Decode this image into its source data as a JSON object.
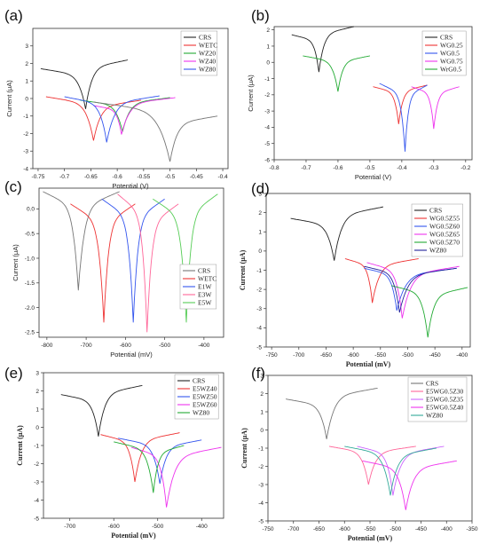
{
  "colors": {
    "black": "#222222",
    "red": "#ee3333",
    "blue": "#3355ee",
    "green": "#22aa33",
    "magenta": "#ee33ee",
    "pink": "#ff6699",
    "gray": "#777777",
    "teal": "#33aa99",
    "navy": "#222299",
    "purple": "#cc66ff",
    "bright_green": "#55cc55"
  },
  "chart_data": [
    {
      "type": "line",
      "panel_label": "(a)",
      "xlabel": "Potential (V)",
      "ylabel": "Current (μA)",
      "xlim": [
        -0.76,
        -0.39
      ],
      "ylim": [
        -4,
        4
      ],
      "xticks": [
        -0.75,
        -0.7,
        -0.65,
        -0.6,
        -0.55,
        -0.5,
        -0.45,
        -0.4
      ],
      "yticks": [
        -4,
        -3,
        -2,
        -1,
        0,
        1,
        2,
        3
      ],
      "legend_position": "top-right",
      "series": [
        {
          "name": "CRS",
          "color": "black",
          "ecorr": -0.66,
          "peak": -0.6,
          "left": [
            -0.745,
            1.7
          ],
          "right": [
            -0.58,
            2.2
          ]
        },
        {
          "name": "WETC",
          "color": "red",
          "ecorr": -0.645,
          "peak": -2.4,
          "left": [
            -0.735,
            0.1
          ],
          "right": [
            -0.555,
            -0.1
          ]
        },
        {
          "name": "WZ20",
          "color": "green",
          "ecorr": -0.59,
          "peak": -1.9,
          "left": [
            -0.67,
            -0.1
          ],
          "right": [
            -0.5,
            0.05
          ]
        },
        {
          "name": "WZ40",
          "color": "magenta",
          "ecorr": -0.592,
          "peak": -2.05,
          "left": [
            -0.645,
            -0.4
          ],
          "right": [
            -0.49,
            0.05
          ]
        },
        {
          "name": "WZ80",
          "color": "blue",
          "ecorr": -0.62,
          "peak": -2.5,
          "left": [
            -0.7,
            0.1
          ],
          "right": [
            -0.52,
            0.15
          ]
        },
        {
          "name": "",
          "color": "gray",
          "ecorr": -0.5,
          "peak": -3.6,
          "left": [
            -0.645,
            -0.2
          ],
          "right": [
            -0.41,
            -1.0
          ]
        }
      ]
    },
    {
      "type": "line",
      "panel_label": "(b)",
      "xlabel": "Potential (V)",
      "ylabel": "Current (μA)",
      "xlim": [
        -0.8,
        -0.18
      ],
      "ylim": [
        -6,
        2.2
      ],
      "xticks": [
        -0.8,
        -0.7,
        -0.6,
        -0.5,
        -0.4,
        -0.3,
        -0.2
      ],
      "yticks": [
        -6,
        -5,
        -4,
        -3,
        -2,
        -1,
        0,
        1,
        2
      ],
      "legend_position": "top-right",
      "series": [
        {
          "name": "CRS",
          "color": "black",
          "ecorr": -0.66,
          "peak": -0.6,
          "left": [
            -0.745,
            1.7
          ],
          "right": [
            -0.55,
            2.2
          ]
        },
        {
          "name": "WG0.25",
          "color": "red",
          "ecorr": -0.41,
          "peak": -3.8,
          "left": [
            -0.49,
            -1.5
          ],
          "right": [
            -0.32,
            -1.4
          ]
        },
        {
          "name": "WG0.5",
          "color": "blue",
          "ecorr": -0.39,
          "peak": -5.5,
          "left": [
            -0.47,
            -1.3
          ],
          "right": [
            -0.32,
            -1.4
          ]
        },
        {
          "name": "WG0.75",
          "color": "magenta",
          "ecorr": -0.3,
          "peak": -4.1,
          "left": [
            -0.37,
            -1.5
          ],
          "right": [
            -0.22,
            -1.5
          ]
        },
        {
          "name": "WrG0.5",
          "color": "green",
          "ecorr": -0.6,
          "peak": -1.8,
          "left": [
            -0.71,
            0.4
          ],
          "right": [
            -0.5,
            0.4
          ]
        }
      ]
    },
    {
      "type": "line",
      "panel_label": "(c)",
      "xlabel": "Potential (mV)",
      "ylabel": "Current (μA)",
      "xlim": [
        -820,
        -350
      ],
      "ylim": [
        -2.6,
        0.42
      ],
      "xticks": [
        -800,
        -700,
        -600,
        -500,
        -400
      ],
      "yticks": [
        -2.5,
        -2.0,
        -1.5,
        -1.0,
        -0.5,
        0.0
      ],
      "legend_position": "bottom-right",
      "series": [
        {
          "name": "CRS",
          "color": "gray",
          "ecorr": -720,
          "peak": -1.65,
          "left": [
            -810,
            0.35
          ],
          "right": [
            -615,
            0.35
          ]
        },
        {
          "name": "WETC",
          "color": "red",
          "ecorr": -655,
          "peak": -2.3,
          "left": [
            -740,
            0.1
          ],
          "right": [
            -575,
            0.1
          ]
        },
        {
          "name": "E1W",
          "color": "blue",
          "ecorr": -580,
          "peak": -2.3,
          "left": [
            -660,
            0.2
          ],
          "right": [
            -500,
            0.2
          ]
        },
        {
          "name": "E3W",
          "color": "pink",
          "ecorr": -545,
          "peak": -2.5,
          "left": [
            -620,
            0.3
          ],
          "right": [
            -465,
            0.1
          ]
        },
        {
          "name": "E5W",
          "color": "bright_green",
          "ecorr": -445,
          "peak": -2.3,
          "left": [
            -530,
            0.2
          ],
          "right": [
            -365,
            0.3
          ]
        }
      ]
    },
    {
      "type": "line",
      "panel_label": "(d)",
      "xlabel": "Potential (mV)",
      "ylabel": "Current (μA)",
      "xlim": [
        -760,
        -385
      ],
      "ylim": [
        -5,
        3
      ],
      "xticks": [
        -750,
        -700,
        -650,
        -600,
        -550,
        -500,
        -450,
        -400
      ],
      "yticks": [
        -5,
        -4,
        -3,
        -2,
        -1,
        0,
        1,
        2,
        3
      ],
      "legend_position": "top-right",
      "series": [
        {
          "name": "CRS",
          "color": "black",
          "ecorr": -635,
          "peak": -0.5,
          "left": [
            -715,
            1.7
          ],
          "right": [
            -545,
            2.3
          ]
        },
        {
          "name": "WG0.5Z55",
          "color": "red",
          "ecorr": -565,
          "peak": -2.7,
          "left": [
            -615,
            -0.4
          ],
          "right": [
            -480,
            -0.4
          ]
        },
        {
          "name": "WG0.5Z60",
          "color": "blue",
          "ecorr": -520,
          "peak": -3.1,
          "left": [
            -580,
            -0.9
          ],
          "right": [
            -410,
            -0.9
          ]
        },
        {
          "name": "WG0.5Z65",
          "color": "magenta",
          "ecorr": -510,
          "peak": -3.5,
          "left": [
            -575,
            -0.6
          ],
          "right": [
            -405,
            -0.8
          ]
        },
        {
          "name": "WG0.5Z70",
          "color": "green",
          "ecorr": -463,
          "peak": -4.5,
          "left": [
            -530,
            -1.8
          ],
          "right": [
            -390,
            -1.9
          ]
        },
        {
          "name": "WZ80",
          "color": "navy",
          "ecorr": -515,
          "peak": -3.2,
          "left": [
            -580,
            -0.8
          ],
          "right": [
            -410,
            -0.9
          ]
        }
      ]
    },
    {
      "type": "line",
      "panel_label": "(e)",
      "xlabel": "Potential (mV)",
      "ylabel": "Current (μA)",
      "xlim": [
        -760,
        -350
      ],
      "ylim": [
        -5,
        3
      ],
      "xticks": [
        -700,
        -600,
        -500,
        -400
      ],
      "yticks": [
        -5,
        -4,
        -3,
        -2,
        -1,
        0,
        1,
        2,
        3
      ],
      "legend_position": "top-right",
      "series": [
        {
          "name": "CRS",
          "color": "black",
          "ecorr": -635,
          "peak": -0.5,
          "left": [
            -720,
            1.8
          ],
          "right": [
            -535,
            2.3
          ]
        },
        {
          "name": "E5WZ40",
          "color": "red",
          "ecorr": -552,
          "peak": -3.0,
          "left": [
            -630,
            -0.4
          ],
          "right": [
            -450,
            -0.3
          ]
        },
        {
          "name": "E5WZ50",
          "color": "blue",
          "ecorr": -495,
          "peak": -3.1,
          "left": [
            -590,
            -0.6
          ],
          "right": [
            -400,
            -0.7
          ]
        },
        {
          "name": "E5WZ60",
          "color": "magenta",
          "ecorr": -480,
          "peak": -4.4,
          "left": [
            -560,
            -1.1
          ],
          "right": [
            -355,
            -1.1
          ]
        },
        {
          "name": "WZ80",
          "color": "green",
          "ecorr": -510,
          "peak": -3.6,
          "left": [
            -600,
            -0.8
          ],
          "right": [
            -440,
            -1.0
          ]
        }
      ]
    },
    {
      "type": "line",
      "panel_label": "(f)",
      "xlabel": "Potential (mV)",
      "ylabel": "Current (μA)",
      "xlim": [
        -750,
        -350
      ],
      "ylim": [
        -5,
        3
      ],
      "xticks": [
        -750,
        -700,
        -650,
        -600,
        -550,
        -500,
        -450,
        -400,
        -350
      ],
      "yticks": [
        -5,
        -4,
        -3,
        -2,
        -1,
        0,
        1,
        2,
        3
      ],
      "legend_position": "top-right",
      "series": [
        {
          "name": "CRS",
          "color": "gray",
          "ecorr": -635,
          "peak": -0.5,
          "left": [
            -715,
            1.7
          ],
          "right": [
            -535,
            2.3
          ]
        },
        {
          "name": "E5WG0.5Z30",
          "color": "pink",
          "ecorr": -553,
          "peak": -3.0,
          "left": [
            -630,
            -0.9
          ],
          "right": [
            -460,
            -0.9
          ]
        },
        {
          "name": "E5WG0.5Z35",
          "color": "purple",
          "ecorr": -505,
          "peak": -3.6,
          "left": [
            -575,
            -0.9
          ],
          "right": [
            -405,
            -0.9
          ]
        },
        {
          "name": "E5WG0.5Z40",
          "color": "magenta",
          "ecorr": -480,
          "peak": -4.4,
          "left": [
            -565,
            -1.7
          ],
          "right": [
            -380,
            -1.7
          ]
        },
        {
          "name": "WZ80",
          "color": "teal",
          "ecorr": -510,
          "peak": -3.6,
          "left": [
            -600,
            -0.9
          ],
          "right": [
            -420,
            -1.0
          ]
        }
      ]
    }
  ]
}
